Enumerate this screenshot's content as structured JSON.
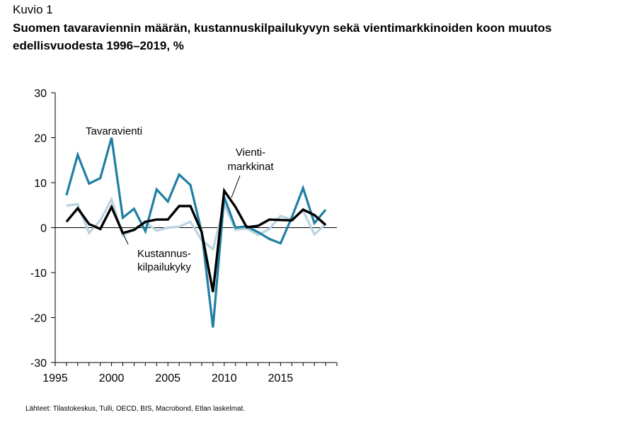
{
  "header": {
    "figure_label": "Kuvio 1",
    "title": "Suomen tavaraviennin määrän, kustannuskilpailukyvyn sekä vientimarkkinoiden koon muutos edellisvuodesta 1996–2019, %"
  },
  "source": "Lähteet: Tilastokeskus, Tulli, OECD, BIS, Macrobond, Etlan laskelmat.",
  "chart_data": {
    "type": "line",
    "xlim": [
      1995,
      2020
    ],
    "ylim": [
      -30,
      30
    ],
    "x_ticks": [
      1995,
      2000,
      2005,
      2010,
      2015
    ],
    "y_ticks": [
      30,
      20,
      10,
      0,
      -10,
      -20,
      -30
    ],
    "x": [
      1996,
      1997,
      1998,
      1999,
      2000,
      2001,
      2002,
      2003,
      2004,
      2005,
      2006,
      2007,
      2008,
      2009,
      2010,
      2011,
      2012,
      2013,
      2014,
      2015,
      2016,
      2017,
      2018,
      2019
    ],
    "series": [
      {
        "key": "tavaravienti",
        "color": "#1f7fa3",
        "width": 3.2,
        "values": [
          7.2,
          16.2,
          9.8,
          11.0,
          20.0,
          2.2,
          4.2,
          -0.8,
          8.5,
          5.8,
          11.8,
          9.5,
          -1.0,
          -22.2,
          6.8,
          0.0,
          0.3,
          -1.0,
          -2.5,
          -3.5,
          2.3,
          8.8,
          1.0,
          4.0
        ]
      },
      {
        "key": "kustannuskilpailukyky",
        "color": "#bcd3e0",
        "width": 3.2,
        "values": [
          4.9,
          5.2,
          -1.2,
          1.6,
          6.3,
          -1.8,
          -0.4,
          1.2,
          -0.7,
          0.0,
          0.2,
          1.3,
          -2.8,
          -4.8,
          5.2,
          -0.5,
          -0.2,
          -1.6,
          -0.3,
          2.6,
          1.8,
          3.8,
          -1.5,
          0.8
        ]
      },
      {
        "key": "vientimarkkinat",
        "color": "#000000",
        "width": 3.4,
        "values": [
          1.3,
          4.3,
          0.8,
          -0.3,
          4.6,
          -1.2,
          -0.5,
          1.3,
          1.8,
          1.8,
          4.8,
          4.8,
          -1.0,
          -14.3,
          8.2,
          4.6,
          0.1,
          0.4,
          1.8,
          1.7,
          1.6,
          4.0,
          2.8,
          0.6
        ]
      }
    ],
    "annotations": {
      "tavaravienti": "Tavaravienti",
      "vientimarkkinat_1": "Vienti-",
      "vientimarkkinat_2": "markkinat",
      "kustannus_1": "Kustannus-",
      "kustannus_2": "kilpailukyky"
    }
  }
}
